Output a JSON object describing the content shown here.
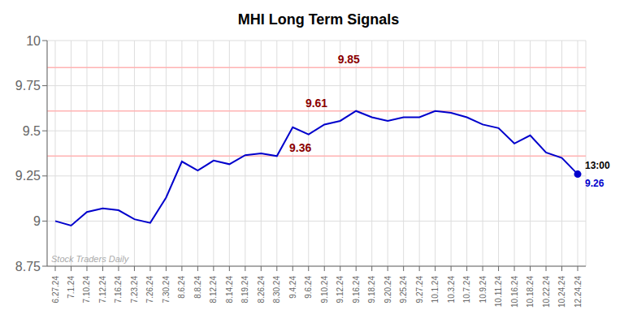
{
  "chart_data": {
    "type": "line",
    "title": "MHI Long Term Signals",
    "categories": [
      "6.27.24",
      "7.1.24",
      "7.10.24",
      "7.12.24",
      "7.16.24",
      "7.23.24",
      "7.26.24",
      "7.30.24",
      "8.6.24",
      "8.8.24",
      "8.12.24",
      "8.14.24",
      "8.19.24",
      "8.26.24",
      "8.30.24",
      "9.4.24",
      "9.6.24",
      "9.10.24",
      "9.12.24",
      "9.16.24",
      "9.18.24",
      "9.20.24",
      "9.25.24",
      "9.27.24",
      "10.1.24",
      "10.3.24",
      "10.7.24",
      "10.9.24",
      "10.11.24",
      "10.16.24",
      "10.18.24",
      "10.22.24",
      "10.24.24",
      "12.24.24"
    ],
    "values": [
      9.0,
      8.975,
      9.05,
      9.07,
      9.06,
      9.01,
      8.99,
      9.13,
      9.33,
      9.28,
      9.335,
      9.315,
      9.365,
      9.375,
      9.36,
      9.52,
      9.48,
      9.535,
      9.555,
      9.61,
      9.575,
      9.555,
      9.575,
      9.575,
      9.61,
      9.6,
      9.575,
      9.535,
      9.515,
      9.43,
      9.475,
      9.38,
      9.35,
      9.26
    ],
    "color": "#0000cc",
    "ylim": [
      8.75,
      10.0
    ],
    "yticks": [
      8.75,
      9,
      9.25,
      9.5,
      9.75,
      10
    ],
    "grid": true,
    "reference_lines": [
      {
        "value": 9.85,
        "label": "9.85",
        "color": "#ffb3b3",
        "label_color": "#8b0000"
      },
      {
        "value": 9.61,
        "label": "9.61",
        "color": "#ffb3b3",
        "label_color": "#8b0000"
      },
      {
        "value": 9.36,
        "label": "9.36",
        "color": "#ffb3b3",
        "label_color": "#8b0000"
      }
    ],
    "end_labels": [
      "13:00",
      "9.26"
    ],
    "watermark": {
      "text": "Stock Traders Daily",
      "color": "#aaaaaa"
    }
  }
}
